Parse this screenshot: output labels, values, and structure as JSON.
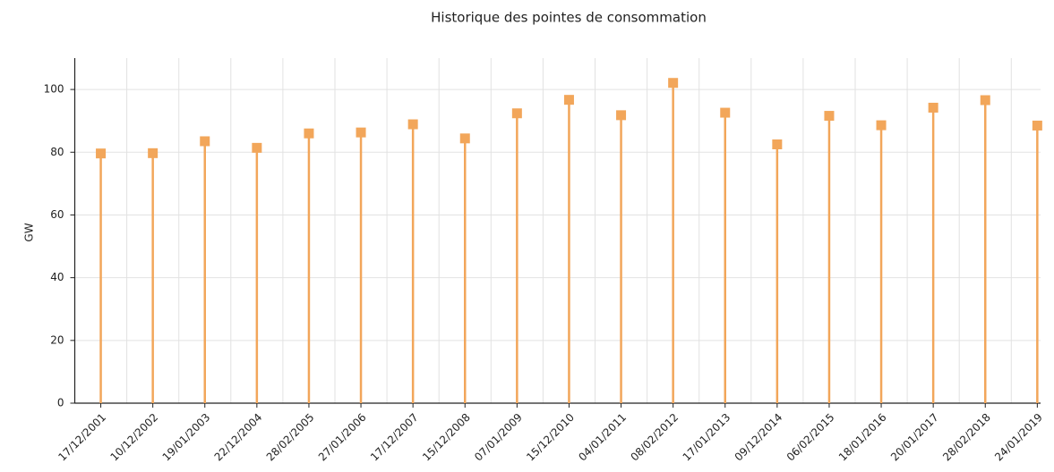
{
  "chart_data": {
    "type": "lollipop",
    "title": "Historique des pointes de consommation",
    "y_label": "GW",
    "categories": [
      "17/12/2001",
      "10/12/2002",
      "19/01/2003",
      "22/12/2004",
      "28/02/2005",
      "27/01/2006",
      "17/12/2007",
      "15/12/2008",
      "07/01/2009",
      "15/12/2010",
      "04/01/2011",
      "08/02/2012",
      "17/01/2013",
      "09/12/2014",
      "06/02/2015",
      "18/01/2016",
      "20/01/2017",
      "28/02/2018",
      "24/01/2019"
    ],
    "values": [
      79.6,
      79.7,
      83.5,
      81.4,
      86.0,
      86.3,
      88.9,
      84.4,
      92.4,
      96.7,
      91.8,
      102.1,
      92.6,
      82.5,
      91.6,
      88.6,
      94.2,
      96.6,
      88.5
    ],
    "color": "#f2a65a",
    "ylim": [
      0,
      110
    ],
    "yticks": [
      0,
      20,
      40,
      60,
      80,
      100
    ],
    "grid": true
  }
}
